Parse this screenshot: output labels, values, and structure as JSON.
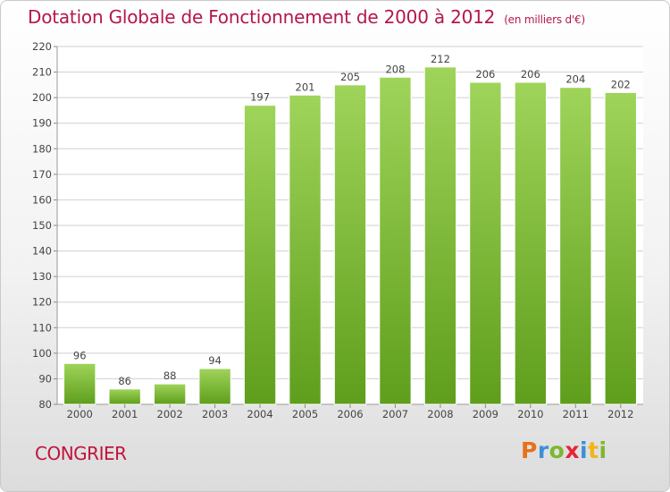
{
  "title": "Dotation Globale de Fonctionnement de 2000 à 2012",
  "subtitle": "(en milliers d'€)",
  "commune": "CONGRIER",
  "logo": {
    "letters": [
      "P",
      "r",
      "o",
      "x",
      "i",
      "t",
      "i"
    ],
    "colors": [
      "#e8701b",
      "#3d8fd6",
      "#7cb82f",
      "#e2263a",
      "#3d8fd6",
      "#f0b51c",
      "#7cb82f"
    ]
  },
  "colors": {
    "title": "#b5174a",
    "bar_top": "#9fd45a",
    "bar_bottom": "#5f9e1c",
    "grid": "#d0d0d0",
    "axis_text": "#444444"
  },
  "chart_data": {
    "type": "bar",
    "title": "Dotation Globale de Fonctionnement de 2000 à 2012",
    "subtitle": "(en milliers d'€)",
    "categories": [
      "2000",
      "2001",
      "2002",
      "2003",
      "2004",
      "2005",
      "2006",
      "2007",
      "2008",
      "2009",
      "2010",
      "2011",
      "2012"
    ],
    "values": [
      96,
      86,
      88,
      94,
      197,
      201,
      205,
      208,
      212,
      206,
      206,
      204,
      202
    ],
    "ylim": [
      80,
      220
    ],
    "yticks": [
      80,
      90,
      100,
      110,
      120,
      130,
      140,
      150,
      160,
      170,
      180,
      190,
      200,
      210,
      220
    ],
    "grid": true,
    "data_labels": true
  }
}
